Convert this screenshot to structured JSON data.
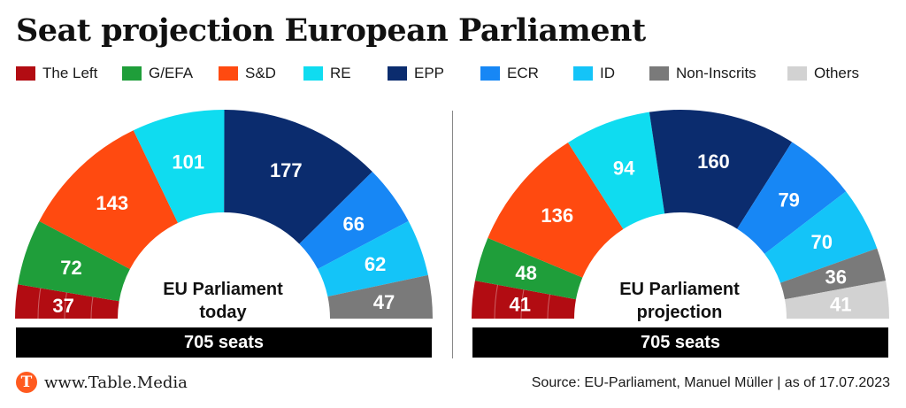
{
  "title": "Seat projection European Parliament",
  "legend": [
    {
      "label": "The Left",
      "color": "#b20c12"
    },
    {
      "label": "G/EFA",
      "color": "#1f9e3a"
    },
    {
      "label": "S&D",
      "color": "#ff4a10"
    },
    {
      "label": "RE",
      "color": "#0fdcf0"
    },
    {
      "label": "EPP",
      "color": "#0b2c6e"
    },
    {
      "label": "ECR",
      "color": "#1787f5"
    },
    {
      "label": "ID",
      "color": "#14c4f8"
    },
    {
      "label": "Non-Inscrits",
      "color": "#7a7a7a"
    },
    {
      "label": "Others",
      "color": "#d2d2d2"
    }
  ],
  "chart_data": [
    {
      "type": "semicircle",
      "center_label_line1": "EU Parliament",
      "center_label_line2": "today",
      "total_label": "705 seats",
      "categories": [
        "The Left",
        "G/EFA",
        "S&D",
        "RE",
        "EPP",
        "ECR",
        "ID",
        "Non-Inscrits"
      ],
      "values": [
        37,
        72,
        143,
        101,
        177,
        66,
        62,
        47
      ],
      "colors": [
        "#b20c12",
        "#1f9e3a",
        "#ff4a10",
        "#0fdcf0",
        "#0b2c6e",
        "#1787f5",
        "#14c4f8",
        "#7a7a7a"
      ]
    },
    {
      "type": "semicircle",
      "center_label_line1": "EU Parliament",
      "center_label_line2": "projection",
      "total_label": "705 seats",
      "categories": [
        "The Left",
        "G/EFA",
        "S&D",
        "RE",
        "EPP",
        "ECR",
        "ID",
        "Non-Inscrits",
        "Others"
      ],
      "values": [
        41,
        48,
        136,
        94,
        160,
        79,
        70,
        36,
        41
      ],
      "colors": [
        "#b20c12",
        "#1f9e3a",
        "#ff4a10",
        "#0fdcf0",
        "#0b2c6e",
        "#1787f5",
        "#14c4f8",
        "#7a7a7a",
        "#d2d2d2"
      ]
    }
  ],
  "footer": {
    "logo_letter": "T",
    "site": "www.Table.Media",
    "source": "Source: EU-Parliament, Manuel Müller | as of 17.07.2023"
  }
}
